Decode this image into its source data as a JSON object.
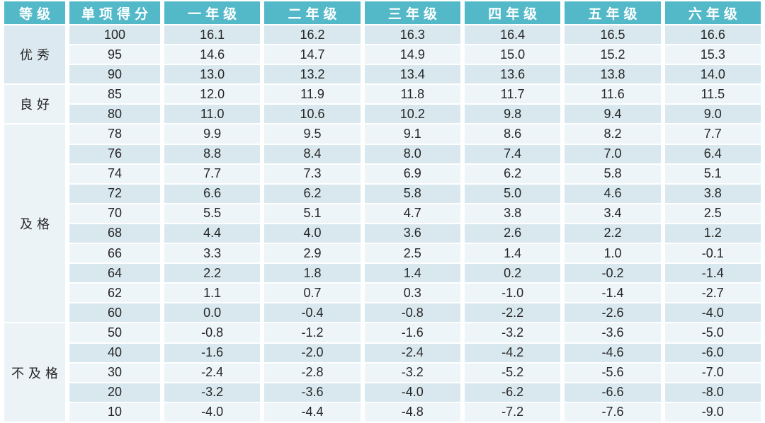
{
  "chart_data": {
    "type": "table",
    "columns": [
      "等级",
      "单项得分",
      "一年级",
      "二年级",
      "三年级",
      "四年级",
      "五年级",
      "六年级"
    ],
    "groups": [
      {
        "label": "优秀",
        "rows": [
          {
            "score": "100",
            "values": [
              "16.1",
              "16.2",
              "16.3",
              "16.4",
              "16.5",
              "16.6"
            ]
          },
          {
            "score": "95",
            "values": [
              "14.6",
              "14.7",
              "14.9",
              "15.0",
              "15.2",
              "15.3"
            ]
          },
          {
            "score": "90",
            "values": [
              "13.0",
              "13.2",
              "13.4",
              "13.6",
              "13.8",
              "14.0"
            ]
          }
        ]
      },
      {
        "label": "良好",
        "rows": [
          {
            "score": "85",
            "values": [
              "12.0",
              "11.9",
              "11.8",
              "11.7",
              "11.6",
              "11.5"
            ]
          },
          {
            "score": "80",
            "values": [
              "11.0",
              "10.6",
              "10.2",
              "9.8",
              "9.4",
              "9.0"
            ]
          }
        ]
      },
      {
        "label": "及格",
        "rows": [
          {
            "score": "78",
            "values": [
              "9.9",
              "9.5",
              "9.1",
              "8.6",
              "8.2",
              "7.7"
            ]
          },
          {
            "score": "76",
            "values": [
              "8.8",
              "8.4",
              "8.0",
              "7.4",
              "7.0",
              "6.4"
            ]
          },
          {
            "score": "74",
            "values": [
              "7.7",
              "7.3",
              "6.9",
              "6.2",
              "5.8",
              "5.1"
            ]
          },
          {
            "score": "72",
            "values": [
              "6.6",
              "6.2",
              "5.8",
              "5.0",
              "4.6",
              "3.8"
            ]
          },
          {
            "score": "70",
            "values": [
              "5.5",
              "5.1",
              "4.7",
              "3.8",
              "3.4",
              "2.5"
            ]
          },
          {
            "score": "68",
            "values": [
              "4.4",
              "4.0",
              "3.6",
              "2.6",
              "2.2",
              "1.2"
            ]
          },
          {
            "score": "66",
            "values": [
              "3.3",
              "2.9",
              "2.5",
              "1.4",
              "1.0",
              "-0.1"
            ]
          },
          {
            "score": "64",
            "values": [
              "2.2",
              "1.8",
              "1.4",
              "0.2",
              "-0.2",
              "-1.4"
            ]
          },
          {
            "score": "62",
            "values": [
              "1.1",
              "0.7",
              "0.3",
              "-1.0",
              "-1.4",
              "-2.7"
            ]
          },
          {
            "score": "60",
            "values": [
              "0.0",
              "-0.4",
              "-0.8",
              "-2.2",
              "-2.6",
              "-4.0"
            ]
          }
        ]
      },
      {
        "label": "不及格",
        "rows": [
          {
            "score": "50",
            "values": [
              "-0.8",
              "-1.2",
              "-1.6",
              "-3.2",
              "-3.6",
              "-5.0"
            ]
          },
          {
            "score": "40",
            "values": [
              "-1.6",
              "-2.0",
              "-2.4",
              "-4.2",
              "-4.6",
              "-6.0"
            ]
          },
          {
            "score": "30",
            "values": [
              "-2.4",
              "-2.8",
              "-3.2",
              "-5.2",
              "-5.6",
              "-7.0"
            ]
          },
          {
            "score": "20",
            "values": [
              "-3.2",
              "-3.6",
              "-4.0",
              "-6.2",
              "-6.6",
              "-8.0"
            ]
          },
          {
            "score": "10",
            "values": [
              "-4.0",
              "-4.4",
              "-4.8",
              "-7.2",
              "-7.6",
              "-9.0"
            ]
          }
        ]
      }
    ]
  },
  "colors": {
    "header_bg": "#53b9c9",
    "header_text": "#ffffff",
    "row_stripe_dark": "#d9e8ef",
    "row_stripe_light": "#eef5f9",
    "group_cell_dark": "#dce9f0",
    "group_cell_light": "#ecf3f7",
    "body_text": "#262626",
    "background": "#ffffff"
  }
}
